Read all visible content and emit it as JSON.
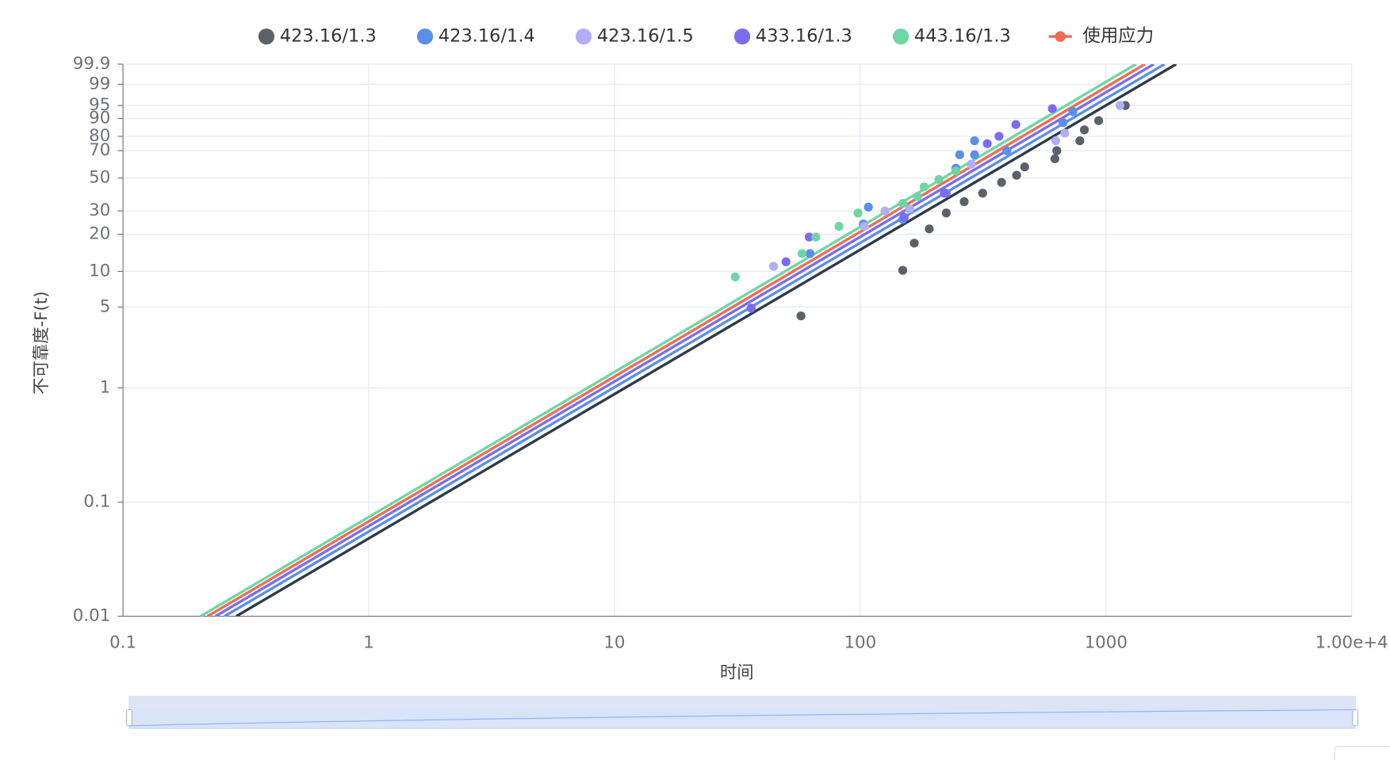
{
  "chart_data": {
    "type": "scatter",
    "y_scale": "weibull",
    "x_scale": "log",
    "grid": true,
    "x_label": "时间",
    "y_label": "不可靠度-F(t)",
    "xlim": [
      0.1,
      10000
    ],
    "xticks": [
      0.1,
      1,
      10,
      100,
      1000,
      {
        "value": 10000,
        "label": "1.00e+4"
      }
    ],
    "ylim": [
      0.01,
      99.9
    ],
    "yticks": [
      0.01,
      0.1,
      1,
      5,
      10,
      20,
      30,
      50,
      70,
      80,
      90,
      95,
      99,
      99.9
    ],
    "series": [
      {
        "name": "423.16/1.3",
        "color": "#5b6168",
        "line_color": "#2f3a47",
        "x": [
          57.4,
          149,
          166,
          191,
          224,
          265,
          315,
          376,
          433,
          467,
          620,
          631,
          783,
          817,
          934,
          1199
        ],
        "values": [
          4.2,
          10.2,
          17,
          22,
          29,
          35,
          40,
          47,
          52,
          58,
          64,
          70,
          77,
          84,
          89,
          95
        ],
        "fit_x": [
          0.289,
          1932
        ],
        "fit_values": [
          0.01,
          99.9
        ]
      },
      {
        "name": "423.16/1.4",
        "color": "#5b8fe8",
        "x": [
          62.5,
          103,
          108,
          149,
          224,
          245,
          254,
          292,
          292,
          395,
          669,
          733
        ],
        "values": [
          14,
          24,
          32,
          26,
          40,
          57,
          67,
          77,
          67,
          70,
          88,
          93
        ],
        "fit_x": [
          0.259,
          1733
        ],
        "fit_values": [
          0.01,
          99.9
        ]
      },
      {
        "name": "423.16/1.5",
        "color": "#b2aef7",
        "x": [
          44.4,
          104,
          126,
          159,
          283,
          625,
          680,
          1140
        ],
        "values": [
          11,
          23,
          30,
          31,
          60,
          77,
          82,
          95
        ]
      },
      {
        "name": "433.16/1.3",
        "color": "#7b6cf0",
        "x": [
          36,
          49.9,
          62,
          151,
          220,
          329,
          367,
          430,
          605
        ],
        "values": [
          4.9,
          12,
          19,
          27,
          40,
          75,
          80,
          87,
          94
        ],
        "fit_x": [
          0.238,
          1567
        ],
        "fit_values": [
          0.01,
          99.9
        ]
      },
      {
        "name": "443.16/1.3",
        "color": "#6fd6a3",
        "x": [
          31,
          58,
          66,
          82,
          98,
          149,
          171,
          182,
          209,
          245
        ],
        "values": [
          9,
          14,
          19,
          23,
          29,
          34,
          38,
          44,
          49,
          55
        ],
        "fit_x": [
          0.207,
          1326
        ],
        "fit_values": [
          0.01,
          99.9
        ]
      },
      {
        "name": "使用应力",
        "color": "#f26b50",
        "fit_x": [
          0.221,
          1442
        ],
        "fit_values": [
          0.01,
          99.9
        ]
      }
    ]
  }
}
